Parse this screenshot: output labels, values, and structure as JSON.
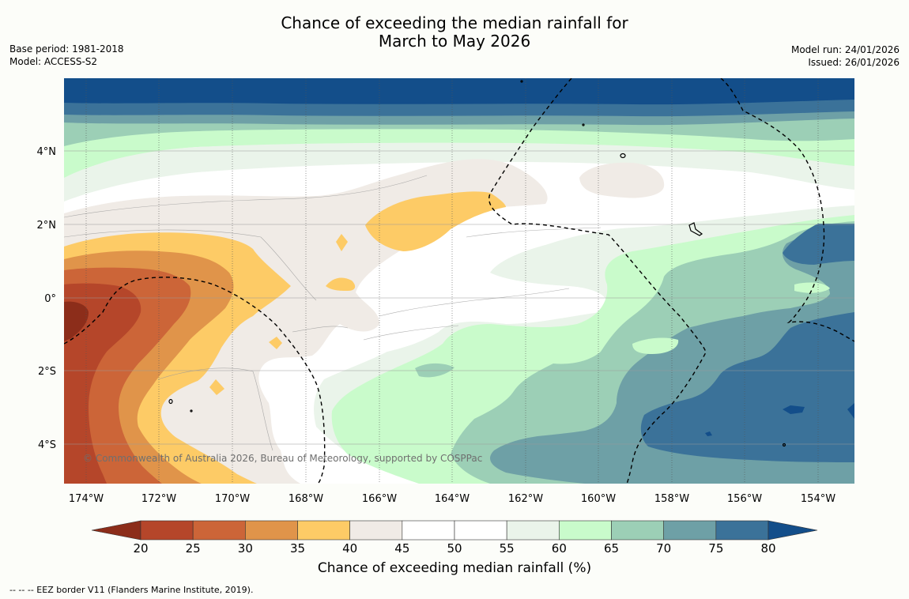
{
  "title": {
    "line1": "Chance of exceeding the median rainfall for",
    "line2": "March to May 2026"
  },
  "meta": {
    "base_period": "Base period: 1981-2018",
    "model": "Model: ACCESS-S2",
    "model_run": "Model run: 24/01/2026",
    "issued": "Issued: 26/01/2026"
  },
  "map": {
    "x_ticks": [
      "174°W",
      "172°W",
      "170°W",
      "168°W",
      "166°W",
      "164°W",
      "162°W",
      "160°W",
      "158°W",
      "156°W",
      "154°W"
    ],
    "y_ticks": [
      "4°N",
      "2°N",
      "0°",
      "2°S",
      "4°S"
    ],
    "lon_range": [
      -174.6,
      -153.0
    ],
    "lat_range": [
      -5.1,
      6.0
    ],
    "copyright": "© Commonwealth of Australia 2026, Bureau of Meteorology, supported by COSPPac",
    "eez_border_label": "EEZ border V11 (Flanders Marine Institute, 2019)."
  },
  "colorbar": {
    "label": "Chance of exceeding median rainfall (%)",
    "ticks": [
      "20",
      "25",
      "30",
      "35",
      "40",
      "45",
      "50",
      "55",
      "60",
      "65",
      "70",
      "75",
      "80"
    ],
    "colors": {
      "below_20": "#8c2d1a",
      "c20_25": "#b5462a",
      "c25_30": "#cc6538",
      "c30_35": "#e0944a",
      "c35_40": "#fdcb66",
      "c40_45": "#f0ebe6",
      "c45_50": "#ffffff",
      "c50_55": "#ffffff",
      "c55_60": "#eaf4ea",
      "c60_65": "#c9fbcb",
      "c65_70": "#9ccfb6",
      "c70_75": "#6ea0a6",
      "c75_80": "#3b7299",
      "above_80": "#134e8a"
    }
  },
  "footnote": "--  --  -- EEZ border V11 (Flanders Marine Institute, 2019)."
}
